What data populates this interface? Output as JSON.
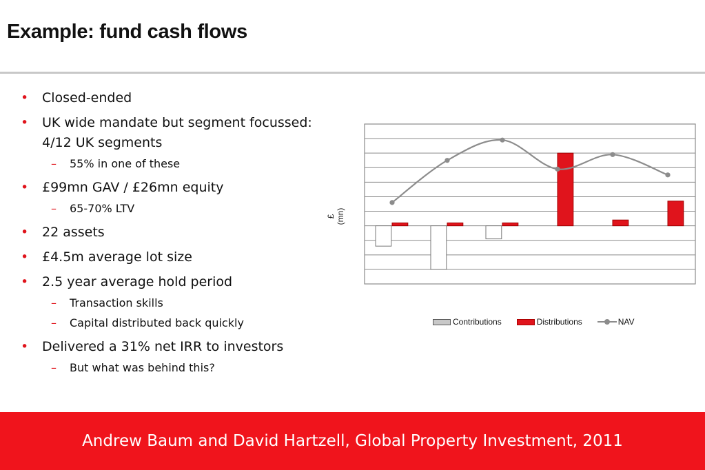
{
  "slide": {
    "title": "Example: fund cash flows",
    "footer": "Andrew Baum and David Hartzell, Global Property Investment, 2011",
    "accent_color": "#f0141c",
    "bullet_marker_l1": "•",
    "bullet_marker_l2": "–"
  },
  "bullets": [
    {
      "level": 1,
      "text": "Closed-ended"
    },
    {
      "level": 1,
      "text": "UK wide mandate but segment focussed: 4/12 UK segments"
    },
    {
      "level": 2,
      "text": "55% in one of these"
    },
    {
      "level": 1,
      "text": "£99mn GAV / £26mn equity"
    },
    {
      "level": 2,
      "text": "65-70% LTV"
    },
    {
      "level": 1,
      "text": "22 assets"
    },
    {
      "level": 1,
      "text": "£4.5m average lot size"
    },
    {
      "level": 1,
      "text": "2.5 year average hold period"
    },
    {
      "level": 2,
      "text": "Transaction skills"
    },
    {
      "level": 2,
      "text": "Capital distributed back quickly"
    },
    {
      "level": 1,
      "text": "Delivered a 31% net IRR to investors"
    },
    {
      "level": 2,
      "text": "But what was behind this?"
    }
  ],
  "chart_data": {
    "type": "bar",
    "ylabel": "£ (mn)",
    "ylim": [
      -4,
      7
    ],
    "grid": true,
    "legend_position": "bottom",
    "periods": 6,
    "series": [
      {
        "name": "Contributions",
        "type": "bar",
        "color": "#ffffff",
        "legend_color": "#c8c8c8",
        "values": [
          -1.4,
          -3.0,
          -0.9,
          0,
          0,
          0
        ]
      },
      {
        "name": "Distributions",
        "type": "bar",
        "color": "#e0141c",
        "values": [
          0.2,
          0.2,
          0.2,
          5.0,
          0.4,
          1.7
        ]
      },
      {
        "name": "NAV",
        "type": "line",
        "color": "#8c8c8c",
        "values": [
          1.6,
          4.5,
          5.9,
          3.9,
          4.9,
          3.5
        ]
      }
    ]
  }
}
